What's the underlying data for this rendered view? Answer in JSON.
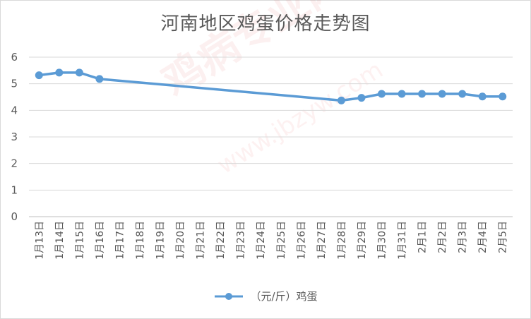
{
  "chart_data": {
    "type": "line",
    "title": "河南地区鸡蛋价格走势图",
    "categories": [
      "1月13日",
      "1月14日",
      "1月15日",
      "1月16日",
      "1月17日",
      "1月18日",
      "1月19日",
      "1月20日",
      "1月21日",
      "1月22日",
      "1月23日",
      "1月24日",
      "1月25日",
      "1月26日",
      "1月27日",
      "1月28日",
      "1月29日",
      "1月30日",
      "1月31日",
      "2月1日",
      "2月2日",
      "2月3日",
      "2月4日",
      "2月5日"
    ],
    "series": [
      {
        "name": "（元/斤）鸡蛋",
        "color": "#5b9bd5",
        "values": [
          5.32,
          5.42,
          5.42,
          5.18,
          null,
          null,
          null,
          null,
          null,
          null,
          null,
          null,
          null,
          null,
          null,
          4.37,
          4.47,
          4.62,
          4.62,
          4.62,
          4.62,
          4.62,
          4.52,
          4.52
        ]
      }
    ],
    "ylim": [
      0,
      6
    ],
    "yticks": [
      "0",
      "1",
      "2",
      "3",
      "4",
      "5",
      "6"
    ],
    "grid": true,
    "legend_position": "bottom"
  },
  "watermark": {
    "text": "鸡病专业网",
    "subtext": "www.jbzyw.com"
  }
}
